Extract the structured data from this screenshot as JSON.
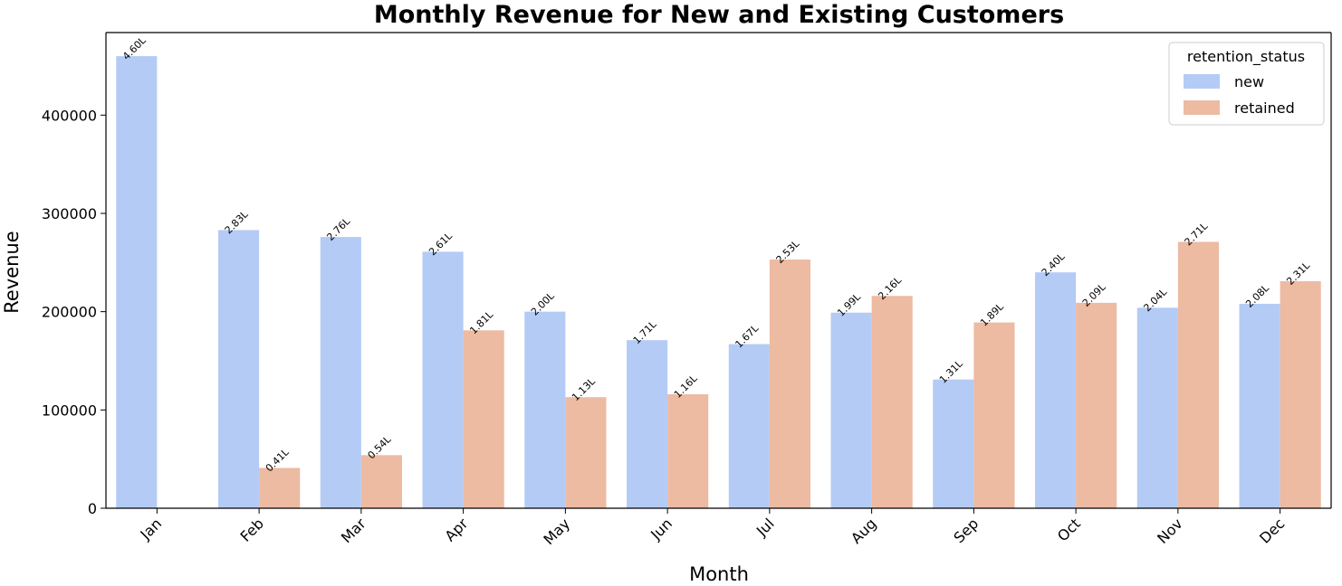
{
  "chart_data": {
    "type": "bar",
    "title": "Monthly Revenue for New and Existing Customers",
    "xlabel": "Month",
    "ylabel": "Revenue",
    "categories": [
      "Jan",
      "Feb",
      "Mar",
      "Apr",
      "May",
      "Jun",
      "Jul",
      "Aug",
      "Sep",
      "Oct",
      "Nov",
      "Dec"
    ],
    "ylim": [
      0,
      484000
    ],
    "yticks": [
      0,
      100000,
      200000,
      300000,
      400000
    ],
    "ytick_labels": [
      "0",
      "100000",
      "200000",
      "300000",
      "400000"
    ],
    "grid": false,
    "legend": {
      "title": "retention_status",
      "placement": "top-right"
    },
    "series": [
      {
        "name": "new",
        "color": "#b4cbf5",
        "values": [
          460000,
          283000,
          276000,
          261000,
          200000,
          171000,
          167000,
          199000,
          131000,
          240000,
          204000,
          208000
        ],
        "labels": [
          "4.60L",
          "2.83L",
          "2.76L",
          "2.61L",
          "2.00L",
          "1.71L",
          "1.67L",
          "1.99L",
          "1.31L",
          "2.40L",
          "2.04L",
          "2.08L"
        ]
      },
      {
        "name": "retained",
        "color": "#edbaa2",
        "values": [
          null,
          41000,
          54000,
          181000,
          113000,
          116000,
          253000,
          216000,
          189000,
          209000,
          271000,
          231000
        ],
        "labels": [
          null,
          "0.41L",
          "0.54L",
          "1.81L",
          "1.13L",
          "1.16L",
          "2.53L",
          "2.16L",
          "1.89L",
          "2.09L",
          "2.71L",
          "2.31L"
        ]
      }
    ]
  }
}
